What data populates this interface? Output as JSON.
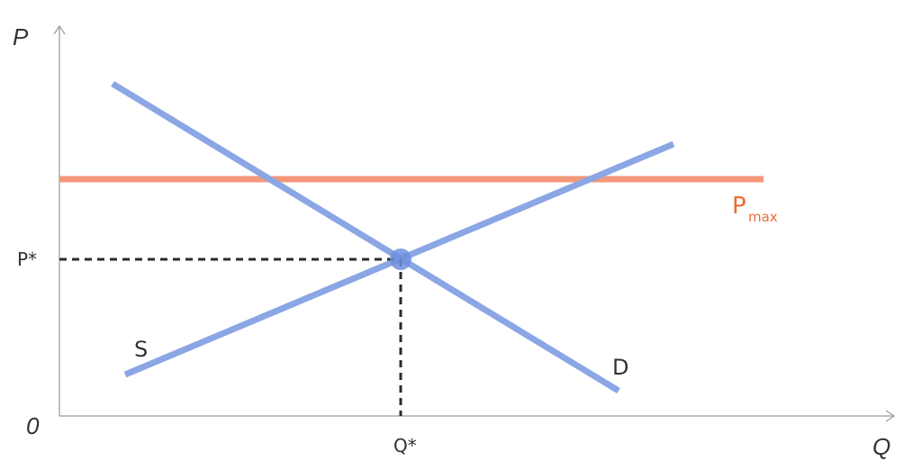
{
  "axes": {
    "y_title": "P",
    "x_title": "Q",
    "origin_label": "0"
  },
  "equilibrium": {
    "price_label": "P*",
    "quantity_label": "Q*"
  },
  "curves": {
    "supply_label": "S",
    "demand_label": "D",
    "price_ceiling_label": "P",
    "price_ceiling_subscript": "max"
  },
  "colors": {
    "curve": "#8ba6e4",
    "equilibrium_point": "#6e8fdd",
    "price_ceiling": "#f3977a",
    "price_ceiling_label": "#ee6a36",
    "axis": "#9a9a9a",
    "guide": "#2b2b2b"
  }
}
